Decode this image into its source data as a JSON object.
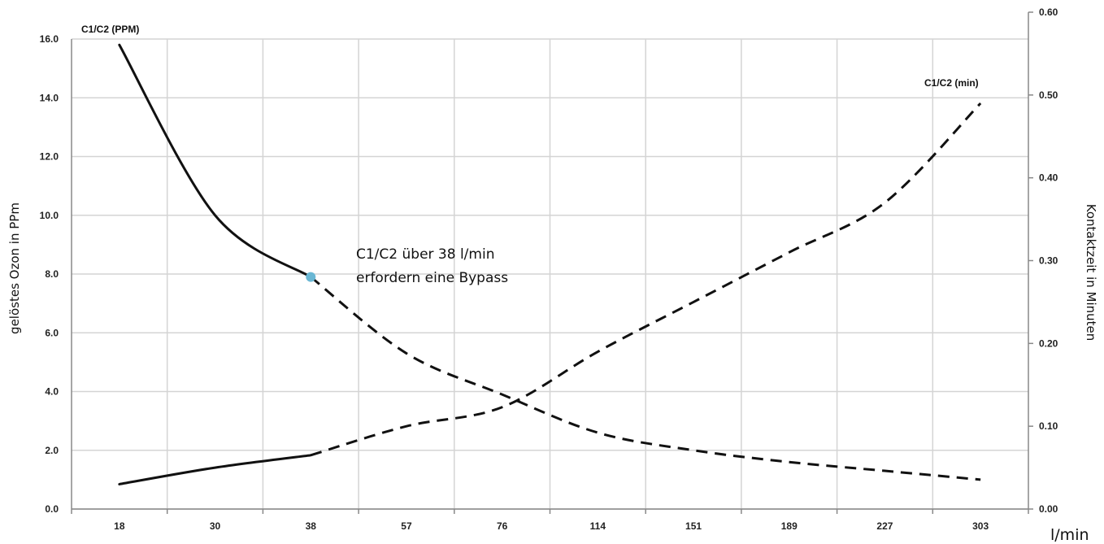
{
  "chart_data": {
    "type": "line",
    "categories": [
      "18",
      "30",
      "38",
      "57",
      "76",
      "114",
      "151",
      "189",
      "227",
      "303"
    ],
    "xlabel": "l/min",
    "ylabel": "gelöstes Ozon in PPm",
    "y2label": "Kontaktzeit in Minuten",
    "ylim": [
      0,
      16
    ],
    "y2lim": [
      0,
      0.6
    ],
    "yticks": [
      "0.0",
      "2.0",
      "4.0",
      "6.0",
      "8.0",
      "10.0",
      "12.0",
      "14.0",
      "16.0"
    ],
    "y2ticks": [
      "0.00",
      "0.10",
      "0.20",
      "0.30",
      "0.40",
      "0.50",
      "0.60"
    ],
    "grid": true,
    "series": [
      {
        "name": "C1/C2 (PPM)",
        "axis": "left",
        "values": [
          15.8,
          10.0,
          7.9,
          5.3,
          3.9,
          2.6,
          2.0,
          1.6,
          1.3,
          1.0
        ],
        "solid_until_index": 2
      },
      {
        "name": "C1/C2 (min)",
        "axis": "right",
        "values": [
          0.03,
          0.05,
          0.065,
          0.1,
          0.123,
          0.19,
          0.25,
          0.31,
          0.37,
          0.49
        ],
        "solid_until_index": 2
      }
    ],
    "annotation": {
      "lines": [
        "C1/C2 über 38 l/min",
        "erfordern eine  Bypass"
      ],
      "anchor_category": "38",
      "anchor_value": 7.9,
      "marker_color": "#6ab7d4"
    }
  }
}
